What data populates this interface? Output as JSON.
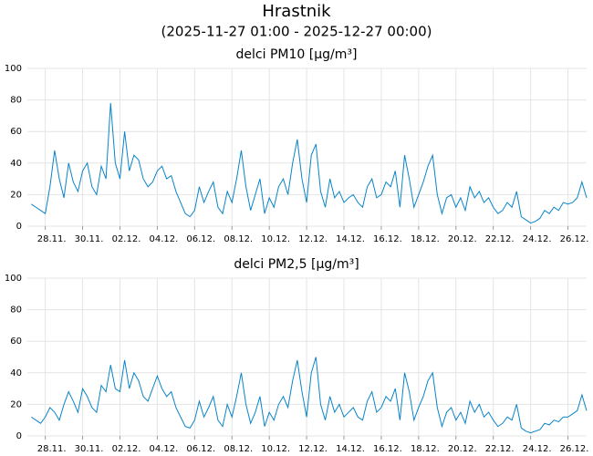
{
  "title": "Hrastnik",
  "subtitle": "(2025-11-27 01:00 - 2025-12-27 00:00)",
  "chart_data": [
    {
      "type": "line",
      "title": "delci PM10 [µg/m³]",
      "x": [
        0.25,
        0.5,
        0.75,
        1,
        1.25,
        1.5,
        1.75,
        2,
        2.25,
        2.5,
        2.75,
        3,
        3.25,
        3.5,
        3.75,
        4,
        4.25,
        4.5,
        4.75,
        5,
        5.25,
        5.5,
        5.75,
        6,
        6.25,
        6.5,
        6.75,
        7,
        7.25,
        7.5,
        7.75,
        8,
        8.25,
        8.5,
        8.75,
        9,
        9.25,
        9.5,
        9.75,
        10,
        10.25,
        10.5,
        10.75,
        11,
        11.25,
        11.5,
        11.75,
        12,
        12.25,
        12.5,
        12.75,
        13,
        13.25,
        13.5,
        13.75,
        14,
        14.25,
        14.5,
        14.75,
        15,
        15.25,
        15.5,
        15.75,
        16,
        16.25,
        16.5,
        16.75,
        17,
        17.25,
        17.5,
        17.75,
        18,
        18.25,
        18.5,
        18.75,
        19,
        19.25,
        19.5,
        19.75,
        20,
        20.25,
        20.5,
        20.75,
        21,
        21.25,
        21.5,
        21.75,
        22,
        22.25,
        22.5,
        22.75,
        23,
        23.25,
        23.5,
        23.75,
        24,
        24.25,
        24.5,
        24.75,
        25,
        25.25,
        25.5,
        25.75,
        26,
        26.25,
        26.5,
        26.75,
        27,
        27.25,
        27.5,
        27.75,
        28,
        28.25,
        28.5,
        28.75,
        29,
        29.25,
        29.5,
        29.75,
        30
      ],
      "series": [
        {
          "name": "PM10",
          "color": "#0a84c8",
          "values": [
            14,
            12,
            10,
            8,
            25,
            48,
            30,
            18,
            40,
            28,
            22,
            35,
            40,
            25,
            20,
            38,
            30,
            78,
            40,
            30,
            60,
            35,
            45,
            42,
            30,
            25,
            28,
            35,
            38,
            30,
            32,
            22,
            15,
            8,
            6,
            10,
            25,
            15,
            22,
            28,
            12,
            8,
            22,
            15,
            30,
            48,
            25,
            10,
            20,
            30,
            8,
            18,
            12,
            25,
            30,
            20,
            40,
            55,
            30,
            15,
            45,
            52,
            22,
            12,
            30,
            18,
            22,
            15,
            18,
            20,
            15,
            12,
            25,
            30,
            18,
            20,
            28,
            25,
            35,
            12,
            45,
            30,
            12,
            20,
            28,
            38,
            45,
            20,
            8,
            18,
            20,
            12,
            18,
            10,
            25,
            18,
            22,
            15,
            18,
            12,
            8,
            10,
            15,
            12,
            22,
            6,
            4,
            2,
            3,
            5,
            10,
            8,
            12,
            10,
            15,
            14,
            15,
            18,
            28,
            18
          ]
        }
      ],
      "xlim": [
        0.04,
        30
      ],
      "ylim": [
        0,
        100
      ],
      "yticks": [
        0,
        20,
        40,
        60,
        80,
        100
      ],
      "xticks": [
        {
          "value": 1,
          "label": "28.11."
        },
        {
          "value": 3,
          "label": "30.11."
        },
        {
          "value": 5,
          "label": "02.12."
        },
        {
          "value": 7,
          "label": "04.12."
        },
        {
          "value": 9,
          "label": "06.12."
        },
        {
          "value": 11,
          "label": "08.12."
        },
        {
          "value": 13,
          "label": "10.12."
        },
        {
          "value": 15,
          "label": "12.12."
        },
        {
          "value": 17,
          "label": "14.12."
        },
        {
          "value": 19,
          "label": "16.12."
        },
        {
          "value": 21,
          "label": "18.12."
        },
        {
          "value": 23,
          "label": "20.12."
        },
        {
          "value": 25,
          "label": "22.12."
        },
        {
          "value": 27,
          "label": "24.12."
        },
        {
          "value": 29,
          "label": "26.12."
        }
      ],
      "grid": true
    },
    {
      "type": "line",
      "title": "delci PM2,5 [µg/m³]",
      "x": [
        0.25,
        0.5,
        0.75,
        1,
        1.25,
        1.5,
        1.75,
        2,
        2.25,
        2.5,
        2.75,
        3,
        3.25,
        3.5,
        3.75,
        4,
        4.25,
        4.5,
        4.75,
        5,
        5.25,
        5.5,
        5.75,
        6,
        6.25,
        6.5,
        6.75,
        7,
        7.25,
        7.5,
        7.75,
        8,
        8.25,
        8.5,
        8.75,
        9,
        9.25,
        9.5,
        9.75,
        10,
        10.25,
        10.5,
        10.75,
        11,
        11.25,
        11.5,
        11.75,
        12,
        12.25,
        12.5,
        12.75,
        13,
        13.25,
        13.5,
        13.75,
        14,
        14.25,
        14.5,
        14.75,
        15,
        15.25,
        15.5,
        15.75,
        16,
        16.25,
        16.5,
        16.75,
        17,
        17.25,
        17.5,
        17.75,
        18,
        18.25,
        18.5,
        18.75,
        19,
        19.25,
        19.5,
        19.75,
        20,
        20.25,
        20.5,
        20.75,
        21,
        21.25,
        21.5,
        21.75,
        22,
        22.25,
        22.5,
        22.75,
        23,
        23.25,
        23.5,
        23.75,
        24,
        24.25,
        24.5,
        24.75,
        25,
        25.25,
        25.5,
        25.75,
        26,
        26.25,
        26.5,
        26.75,
        27,
        27.25,
        27.5,
        27.75,
        28,
        28.25,
        28.5,
        28.75,
        29,
        29.25,
        29.5,
        29.75,
        30
      ],
      "series": [
        {
          "name": "PM2,5",
          "color": "#0a84c8",
          "values": [
            12,
            10,
            8,
            12,
            18,
            15,
            10,
            20,
            28,
            22,
            15,
            30,
            25,
            18,
            15,
            32,
            28,
            45,
            30,
            28,
            48,
            30,
            40,
            35,
            25,
            22,
            30,
            38,
            30,
            25,
            28,
            18,
            12,
            6,
            5,
            10,
            22,
            12,
            18,
            25,
            10,
            6,
            20,
            12,
            25,
            40,
            20,
            8,
            15,
            25,
            6,
            15,
            10,
            20,
            25,
            18,
            35,
            48,
            28,
            12,
            40,
            50,
            20,
            10,
            25,
            15,
            20,
            12,
            15,
            18,
            12,
            10,
            22,
            28,
            15,
            18,
            25,
            22,
            30,
            10,
            40,
            28,
            10,
            18,
            25,
            35,
            40,
            18,
            6,
            15,
            18,
            10,
            15,
            8,
            22,
            15,
            20,
            12,
            15,
            10,
            6,
            8,
            12,
            10,
            20,
            5,
            3,
            2,
            3,
            4,
            8,
            7,
            10,
            9,
            12,
            12,
            14,
            16,
            26,
            16
          ]
        }
      ],
      "xlim": [
        0.04,
        30
      ],
      "ylim": [
        0,
        100
      ],
      "yticks": [
        0,
        20,
        40,
        60,
        80,
        100
      ],
      "xticks": [
        {
          "value": 1,
          "label": "28.11."
        },
        {
          "value": 3,
          "label": "30.11."
        },
        {
          "value": 5,
          "label": "02.12."
        },
        {
          "value": 7,
          "label": "04.12."
        },
        {
          "value": 9,
          "label": "06.12."
        },
        {
          "value": 11,
          "label": "08.12."
        },
        {
          "value": 13,
          "label": "10.12."
        },
        {
          "value": 15,
          "label": "12.12."
        },
        {
          "value": 17,
          "label": "14.12."
        },
        {
          "value": 19,
          "label": "16.12."
        },
        {
          "value": 21,
          "label": "18.12."
        },
        {
          "value": 23,
          "label": "20.12."
        },
        {
          "value": 25,
          "label": "22.12."
        },
        {
          "value": 27,
          "label": "24.12."
        },
        {
          "value": 29,
          "label": "26.12."
        }
      ],
      "grid": true
    }
  ]
}
